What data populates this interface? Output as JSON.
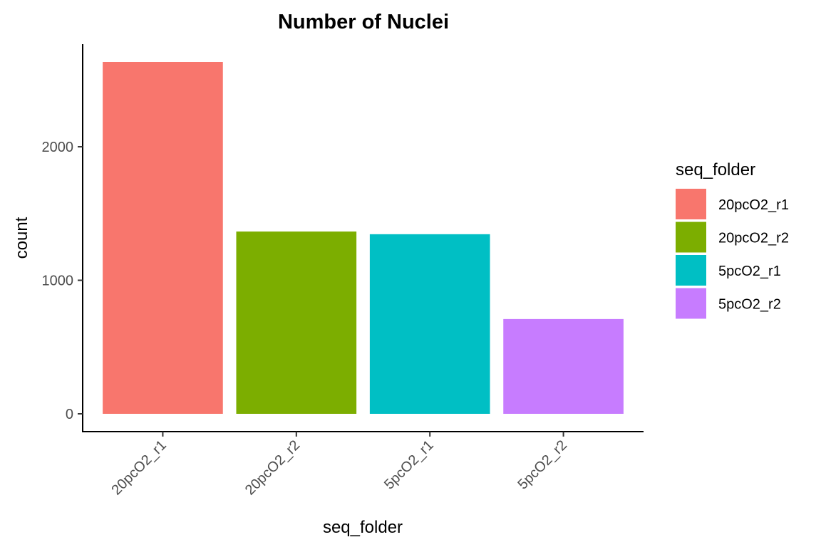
{
  "chart_data": {
    "type": "bar",
    "title": "Number of Nuclei",
    "xlabel": "seq_folder",
    "ylabel": "count",
    "categories": [
      "20pcO2_r1",
      "20pcO2_r2",
      "5pcO2_r1",
      "5pcO2_r2"
    ],
    "values": [
      2635,
      1365,
      1345,
      710
    ],
    "colors": [
      "#F8766D",
      "#7CAE00",
      "#00BFC4",
      "#C77CFF"
    ],
    "ylim": [
      0,
      2635
    ],
    "yticks": [
      0,
      1000,
      2000
    ],
    "grid": false,
    "legend": {
      "title": "seq_folder",
      "position": "right",
      "entries": [
        "20pcO2_r1",
        "20pcO2_r2",
        "5pcO2_r1",
        "5pcO2_r2"
      ]
    }
  }
}
